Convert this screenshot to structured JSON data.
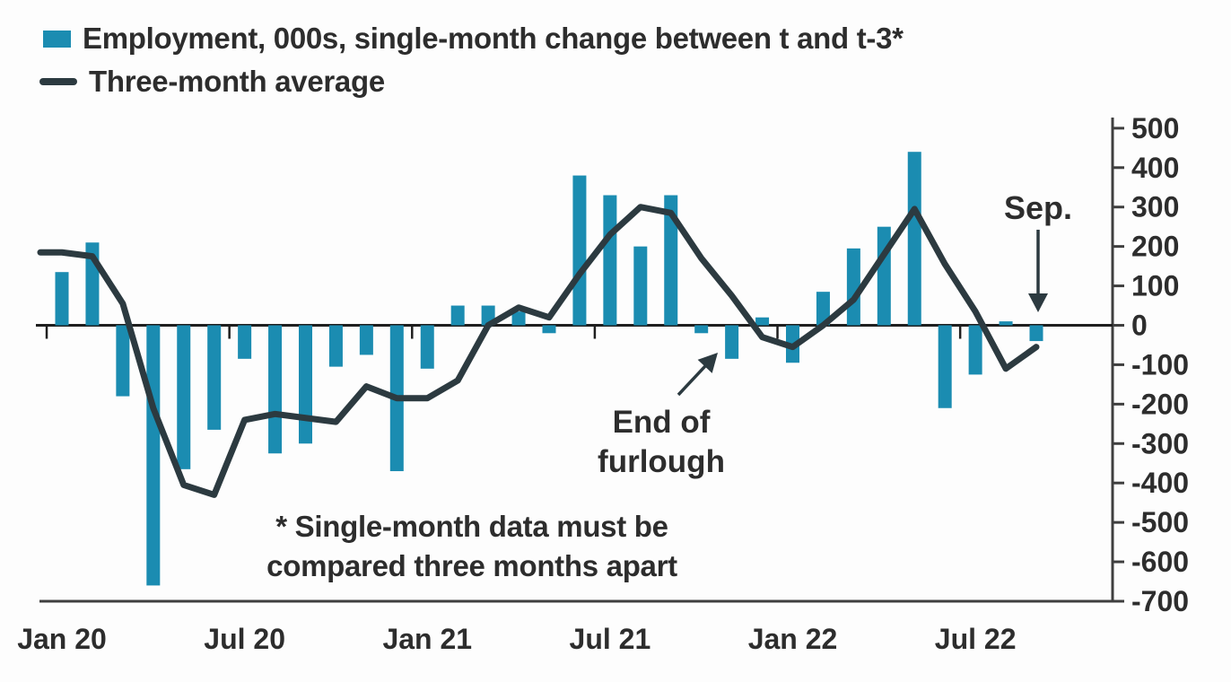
{
  "legend": {
    "bars_label": "Employment, 000s, single-month change between t and t-3*",
    "line_label": "Three-month average"
  },
  "annotations": {
    "sep_label": "Sep.",
    "furlough_line1": "End of",
    "furlough_line2": "furlough",
    "footnote_line1": "* Single-month data must be",
    "footnote_line2": "compared three months apart"
  },
  "colors": {
    "bar": "#1b8cb1",
    "line": "#2c3a40",
    "axis": "#3f3f3f",
    "zero_line": "#1f1f1f",
    "text": "#2d2d2d"
  },
  "chart_data": {
    "type": "bar",
    "unit": "thousands (000s)",
    "y_range": [
      -700,
      500
    ],
    "grid": false,
    "legend_position": "top-left",
    "y_axis_side": "right",
    "y_ticks": [
      500,
      400,
      300,
      200,
      100,
      0,
      -100,
      -200,
      -300,
      -400,
      -500,
      -600,
      -700
    ],
    "x_tick_labels": [
      "Jan 20",
      "Jul 20",
      "Jan 21",
      "Jul 21",
      "Jan 22",
      "Jul 22"
    ],
    "months": [
      "Jan 20",
      "Feb 20",
      "Mar 20",
      "Apr 20",
      "May 20",
      "Jun 20",
      "Jul 20",
      "Aug 20",
      "Sep 20",
      "Oct 20",
      "Nov 20",
      "Dec 20",
      "Jan 21",
      "Feb 21",
      "Mar 21",
      "Apr 21",
      "May 21",
      "Jun 21",
      "Jul 21",
      "Aug 21",
      "Sep 21",
      "Oct 21",
      "Nov 21",
      "Dec 21",
      "Jan 22",
      "Feb 22",
      "Mar 22",
      "Apr 22",
      "May 22",
      "Jun 22",
      "Jul 22",
      "Aug 22",
      "Sep 22"
    ],
    "series": [
      {
        "name": "Employment, 000s, single-month change between t and t-3*",
        "type": "bar",
        "values": [
          135,
          210,
          -180,
          -660,
          -365,
          -265,
          -85,
          -325,
          -300,
          -105,
          -75,
          -370,
          -110,
          50,
          50,
          35,
          -20,
          380,
          330,
          200,
          330,
          -20,
          -85,
          20,
          -95,
          85,
          195,
          250,
          440,
          -210,
          -125,
          10,
          -40
        ]
      },
      {
        "name": "Three-month average",
        "type": "line",
        "values": [
          185,
          175,
          55,
          -210,
          -405,
          -430,
          -240,
          -225,
          -235,
          -245,
          -155,
          -185,
          -185,
          -140,
          0,
          45,
          20,
          130,
          230,
          300,
          285,
          170,
          75,
          -30,
          -55,
          0,
          65,
          180,
          295,
          155,
          35,
          -110,
          -55
        ]
      }
    ],
    "annotated_points": [
      {
        "label": "Sep.",
        "month": "Sep 22"
      },
      {
        "label": "End of furlough",
        "month": "Nov 21"
      }
    ]
  }
}
